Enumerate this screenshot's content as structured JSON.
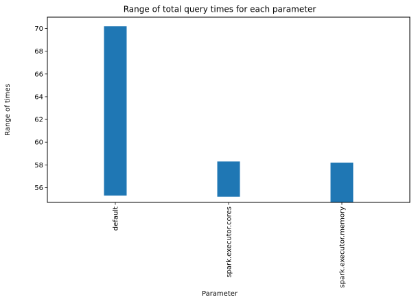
{
  "chart_data": {
    "type": "bar",
    "title": "Range of total query times for each parameter",
    "xlabel": "Parameter",
    "ylabel": "Range of times",
    "categories": [
      "default",
      "spark.executor.cores",
      "spark.executor.memory"
    ],
    "series": [
      {
        "color": "#1f77b4",
        "bottoms": [
          55.3,
          55.2,
          54.7
        ],
        "tops": [
          70.2,
          58.3,
          58.2
        ]
      }
    ],
    "yticks": [
      56,
      58,
      60,
      62,
      64,
      66,
      68,
      70
    ],
    "ylim": [
      54.7,
      71.0
    ],
    "grid": false,
    "legend": "none"
  }
}
